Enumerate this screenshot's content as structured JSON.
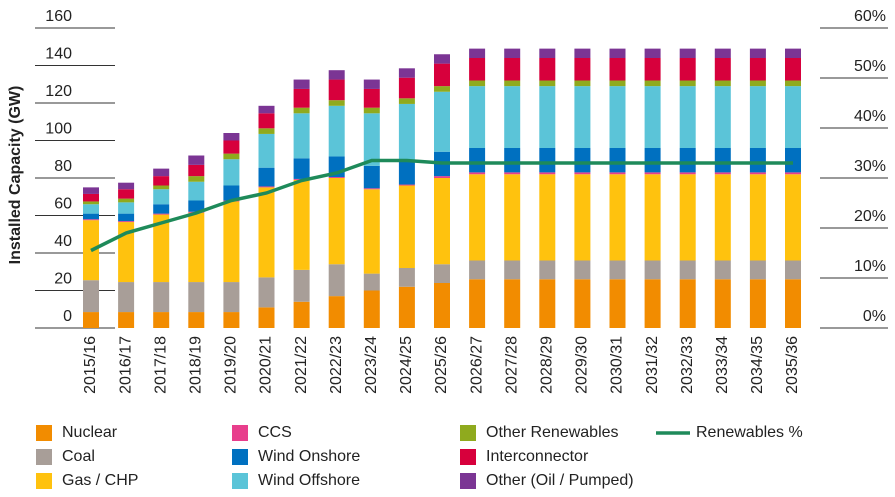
{
  "chart_data": {
    "type": "bar",
    "stacked": true,
    "ylabel": "Installed Capacity (GW)",
    "categories": [
      "2015/16",
      "2016/17",
      "2017/18",
      "2018/19",
      "2019/20",
      "2020/21",
      "2021/22",
      "2022/23",
      "2023/24",
      "2024/25",
      "2025/26",
      "2026/27",
      "2027/28",
      "2028/29",
      "2029/30",
      "2030/31",
      "2031/32",
      "2032/33",
      "2033/34",
      "2034/35",
      "2035/36"
    ],
    "ylim": [
      0,
      160
    ],
    "yticks": [
      0,
      20,
      40,
      60,
      80,
      100,
      120,
      140,
      160
    ],
    "y2lim": [
      0,
      60
    ],
    "y2ticks": [
      {
        "value": 0,
        "label": "0%"
      },
      {
        "value": 10,
        "label": "10%"
      },
      {
        "value": 20,
        "label": "20%"
      },
      {
        "value": 30,
        "label": "30%"
      },
      {
        "value": 40,
        "label": "40%"
      },
      {
        "value": 50,
        "label": "50%"
      },
      {
        "value": 60,
        "label": "60%"
      }
    ],
    "series": [
      {
        "name": "Nuclear",
        "color": "#f28c00",
        "values": [
          8.5,
          8.5,
          8.5,
          8.5,
          8.5,
          11,
          14,
          17,
          20,
          22,
          24,
          26,
          26,
          26,
          26,
          26,
          26,
          26,
          26,
          26,
          26
        ]
      },
      {
        "name": "Coal",
        "color": "#a89e98",
        "values": [
          17,
          16,
          16,
          16,
          16,
          16,
          17,
          17,
          9,
          10,
          10,
          10,
          10,
          10,
          10,
          10,
          10,
          10,
          10,
          10,
          10
        ]
      },
      {
        "name": "Gas / CHP",
        "color": "#ffc20e",
        "values": [
          32,
          32,
          36,
          37,
          43,
          48,
          48,
          46,
          45,
          44,
          46,
          46,
          46,
          46,
          46,
          46,
          46,
          46,
          46,
          46,
          46
        ]
      },
      {
        "name": "CCS",
        "color": "#e83e8c",
        "values": [
          0.5,
          0.5,
          0.5,
          0.5,
          0.5,
          0.5,
          0.5,
          0.5,
          0.5,
          0.5,
          1,
          1,
          1,
          1,
          1,
          1,
          1,
          1,
          1,
          1,
          1
        ]
      },
      {
        "name": "Wind Onshore",
        "color": "#0070c0",
        "values": [
          3,
          4,
          5,
          6,
          8,
          10,
          11,
          11,
          12,
          13,
          13,
          13,
          13,
          13,
          13,
          13,
          13,
          13,
          13,
          13,
          13
        ]
      },
      {
        "name": "Wind Offshore",
        "color": "#5bc4d8",
        "values": [
          5,
          6,
          8,
          10,
          14,
          18,
          24,
          27,
          28,
          30,
          32,
          33,
          33,
          33,
          33,
          33,
          33,
          33,
          33,
          33,
          33
        ]
      },
      {
        "name": "Other Renewables",
        "color": "#8faa1e",
        "values": [
          1.5,
          2,
          2,
          3,
          3,
          3,
          3,
          3,
          3,
          3,
          3,
          3,
          3,
          3,
          3,
          3,
          3,
          3,
          3,
          3,
          3
        ]
      },
      {
        "name": "Interconnector",
        "color": "#d7003c",
        "values": [
          4,
          5,
          5,
          6,
          7,
          8,
          10,
          11,
          10,
          11,
          12,
          12,
          12,
          12,
          12,
          12,
          12,
          12,
          12,
          12,
          12
        ]
      },
      {
        "name": "Other (Oil / Pumped)",
        "color": "#7b3594",
        "values": [
          3.5,
          3.5,
          4,
          5,
          4,
          4,
          5,
          5,
          5,
          5,
          5,
          5,
          5,
          5,
          5,
          5,
          5,
          5,
          5,
          5,
          5
        ]
      },
      {
        "name": "Renewables %",
        "color": "#1e8a5a",
        "type": "line",
        "axis": "y2",
        "values": [
          15.5,
          19,
          21,
          23,
          25.5,
          27,
          29.5,
          31,
          33.5,
          33.5,
          33,
          33,
          33,
          33,
          33,
          33,
          33,
          33,
          33,
          33,
          33
        ]
      }
    ]
  }
}
